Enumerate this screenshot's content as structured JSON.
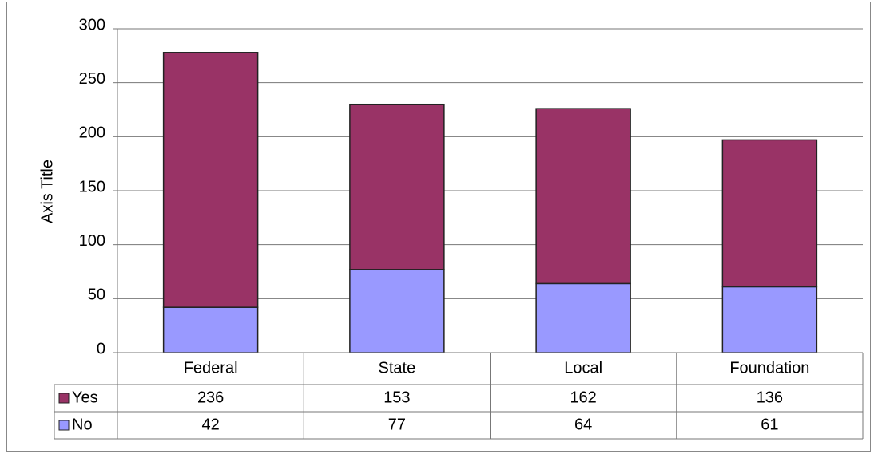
{
  "chart_data": {
    "type": "stacked-bar",
    "y_axis_title": "Axis Title",
    "categories": [
      "Federal",
      "State",
      "Local",
      "Foundation"
    ],
    "series": [
      {
        "name": "Yes",
        "color": "#993366",
        "values": [
          236,
          153,
          162,
          136
        ]
      },
      {
        "name": "No",
        "color": "#9999ff",
        "values": [
          42,
          77,
          64,
          61
        ]
      }
    ],
    "ylim": [
      0,
      300
    ],
    "yticks": [
      0,
      50,
      100,
      150,
      200,
      250,
      300
    ],
    "grid": true,
    "legend": "data-table"
  }
}
